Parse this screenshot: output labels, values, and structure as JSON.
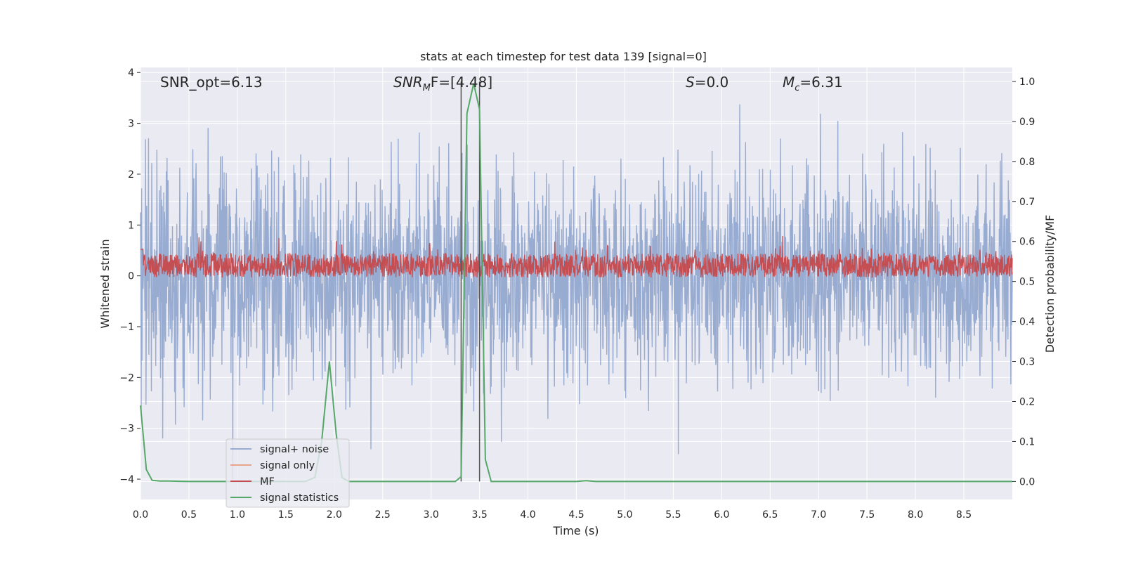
{
  "chart_data": {
    "type": "line",
    "title": "stats at each timestep for test data 139 [signal=0]",
    "xlabel": "Time (s)",
    "ylabel_left": "Whitened strain",
    "ylabel_right": "Detection probability/MF",
    "xlim": [
      0,
      9.0
    ],
    "ylim_left": [
      -4.4,
      4.1
    ],
    "ylim_right": [
      -0.045,
      1.035
    ],
    "x_ticks": [
      "0.0",
      "0.5",
      "1.0",
      "1.5",
      "2.0",
      "2.5",
      "3.0",
      "3.5",
      "4.0",
      "4.5",
      "5.0",
      "5.5",
      "6.0",
      "6.5",
      "7.0",
      "7.5",
      "8.0",
      "8.5"
    ],
    "y_ticks_left": [
      "4",
      "3",
      "2",
      "1",
      "0",
      "−1",
      "−2",
      "−3",
      "−4"
    ],
    "y_ticks_right": [
      "1.0",
      "0.9",
      "0.8",
      "0.7",
      "0.6",
      "0.5",
      "0.4",
      "0.3",
      "0.2",
      "0.1",
      "0.0"
    ],
    "grid": true,
    "legend_position": "lower-left",
    "annotations": {
      "snr_opt": "SNR_opt=6.13",
      "snr_mf_main": "SNR",
      "snr_mf_sub": "M",
      "snr_mf_rest": "F=[4.48]",
      "s_main": "S",
      "s_rest": "=0.0",
      "mc_main": "M",
      "mc_sub": "c",
      "mc_rest": "=6.31"
    },
    "vertical_lines_x": [
      3.31,
      3.5
    ],
    "series": [
      {
        "name": "signal+ noise",
        "color": "#98abd0",
        "axis": "left",
        "description_values": {
          "typical_abs_max": 2.2,
          "peak_max": 3.65,
          "peak_min": -4.0
        }
      },
      {
        "name": "signal only",
        "color": "#e8a58c",
        "axis": "left",
        "values_note": "not visible"
      },
      {
        "name": "MF",
        "color": "#c44e52",
        "axis": "right",
        "range": [
          0.5,
          0.59
        ]
      },
      {
        "name": "signal statistics",
        "color": "#55a868",
        "axis": "right",
        "x": [
          0.0,
          0.06,
          0.12,
          0.2,
          0.3,
          0.5,
          1.0,
          1.5,
          1.7,
          1.8,
          1.87,
          1.95,
          2.02,
          2.08,
          2.15,
          2.5,
          3.0,
          3.25,
          3.31,
          3.37,
          3.44,
          3.5,
          3.56,
          3.62,
          3.7,
          4.0,
          4.5,
          4.6,
          4.7,
          5.0,
          6.0,
          7.0,
          8.0,
          9.0
        ],
        "y": [
          0.19,
          0.03,
          0.003,
          0.001,
          0.001,
          0.0,
          0.0,
          0.0,
          0.0,
          0.01,
          0.1,
          0.3,
          0.12,
          0.01,
          0.0,
          0.0,
          0.0,
          0.0,
          0.012,
          0.92,
          0.995,
          0.93,
          0.055,
          0.0,
          0.0,
          0.0,
          0.0,
          0.002,
          0.0,
          0.0,
          0.0,
          0.0,
          0.0,
          0.0
        ]
      }
    ]
  },
  "colors": {
    "plot_background": "#eaeaf2",
    "grid": "#ffffff",
    "noise": "#98abd0",
    "signal_only": "#e8a58c",
    "mf": "#c44e52",
    "stats": "#55a868",
    "vline": "#555555"
  }
}
